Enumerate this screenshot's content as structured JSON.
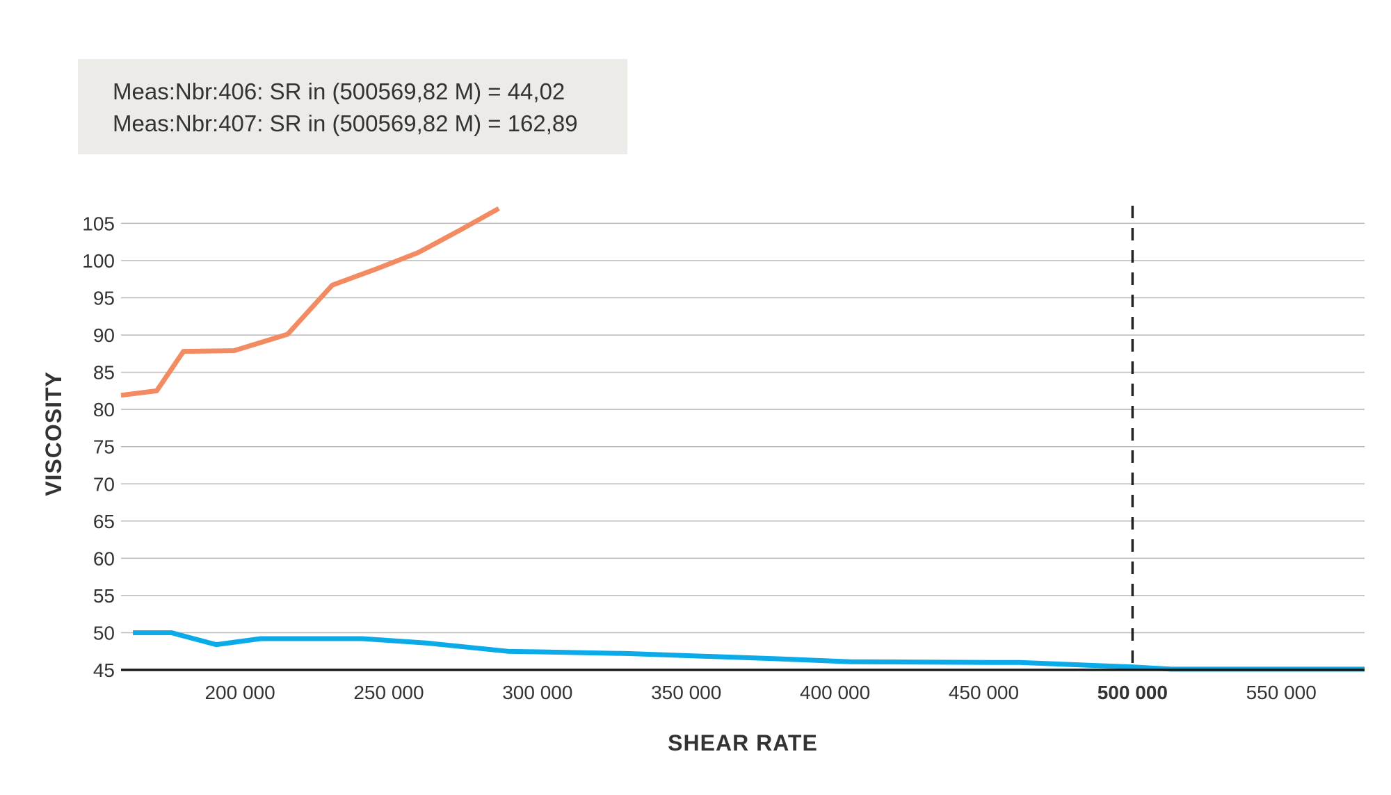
{
  "readout": {
    "line1": "Meas:Nbr:406: SR in (500569,82 M) = 44,02",
    "line2": "Meas:Nbr:407: SR in (500569,82 M) = 162,89"
  },
  "chart_data": {
    "type": "line",
    "title": "",
    "xlabel": "SHEAR RATE",
    "ylabel": "VISCOSITY",
    "xlim": [
      160000,
      578000
    ],
    "ylim": [
      45,
      107
    ],
    "grid": true,
    "y_ticks": [
      45,
      50,
      55,
      60,
      65,
      70,
      75,
      80,
      85,
      90,
      95,
      100,
      105
    ],
    "x_ticks": [
      {
        "value": 200000,
        "label": "200 000",
        "bold": false
      },
      {
        "value": 250000,
        "label": "250 000",
        "bold": false
      },
      {
        "value": 300000,
        "label": "300 000",
        "bold": false
      },
      {
        "value": 350000,
        "label": "350 000",
        "bold": false
      },
      {
        "value": 400000,
        "label": "400 000",
        "bold": false
      },
      {
        "value": 450000,
        "label": "450 000",
        "bold": false
      },
      {
        "value": 500000,
        "label": "500 000",
        "bold": true
      },
      {
        "value": 550000,
        "label": "550 000",
        "bold": false
      }
    ],
    "marker_line": {
      "x": 500000,
      "style": "dashed",
      "color": "#222222"
    },
    "series": [
      {
        "color": "#f28a62",
        "x": [
          160000,
          172000,
          181000,
          198000,
          216000,
          231000,
          246000,
          260000,
          274000,
          287000
        ],
        "y": [
          81.9,
          82.5,
          87.8,
          87.9,
          90.1,
          96.7,
          98.9,
          101.1,
          104.1,
          107.0
        ]
      },
      {
        "color": "#0aabe8",
        "x": [
          164000,
          177000,
          192000,
          207000,
          226000,
          241000,
          263000,
          290000,
          330000,
          380000,
          405000,
          452000,
          462000,
          500000,
          513000,
          578000
        ],
        "y": [
          50.0,
          50.0,
          48.4,
          49.2,
          49.2,
          49.2,
          48.6,
          47.5,
          47.2,
          46.5,
          46.1,
          46.0,
          46.0,
          45.4,
          45.1,
          45.1
        ]
      }
    ]
  }
}
